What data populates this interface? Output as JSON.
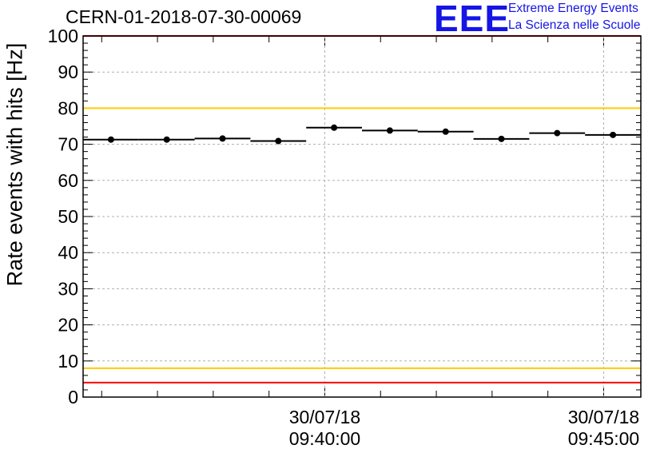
{
  "title": "CERN-01-2018-07-30-00069",
  "logo": {
    "letters": "EEE",
    "line1": "Extreme Energy Events",
    "line2": "La Scienza nelle Scuole",
    "color": "#1515e6"
  },
  "chart_data": {
    "type": "scatter",
    "ylabel": "Rate events with hits [Hz]",
    "xlabel": "",
    "ylim": [
      0,
      100
    ],
    "xlim": [
      "09:35:40",
      "09:45:40"
    ],
    "yticks": [
      0,
      10,
      20,
      30,
      40,
      50,
      60,
      70,
      80,
      90,
      100
    ],
    "xticks": [
      {
        "date": "30/07/18",
        "time": "09:40:00"
      },
      {
        "date": "30/07/18",
        "time": "09:45:00"
      }
    ],
    "grid": true,
    "points": [
      {
        "x": "09:36:10",
        "y": 71.3,
        "xerr_s": 30,
        "yerr": 0.6
      },
      {
        "x": "09:37:10",
        "y": 71.3,
        "xerr_s": 30,
        "yerr": 0.6
      },
      {
        "x": "09:38:10",
        "y": 71.6,
        "xerr_s": 30,
        "yerr": 0.6
      },
      {
        "x": "09:39:10",
        "y": 70.9,
        "xerr_s": 30,
        "yerr": 0.6
      },
      {
        "x": "09:40:10",
        "y": 74.6,
        "xerr_s": 30,
        "yerr": 0.6
      },
      {
        "x": "09:41:10",
        "y": 73.8,
        "xerr_s": 30,
        "yerr": 0.6
      },
      {
        "x": "09:42:10",
        "y": 73.5,
        "xerr_s": 30,
        "yerr": 0.6
      },
      {
        "x": "09:43:10",
        "y": 71.5,
        "xerr_s": 30,
        "yerr": 0.6
      },
      {
        "x": "09:44:10",
        "y": 73.1,
        "xerr_s": 30,
        "yerr": 0.6
      },
      {
        "x": "09:45:10",
        "y": 72.6,
        "xerr_s": 30,
        "yerr": 0.6
      }
    ],
    "reference_lines": [
      {
        "y": 100,
        "color": "#ff0000"
      },
      {
        "y": 80,
        "color": "#ffcc00"
      },
      {
        "y": 8,
        "color": "#ffcc00"
      },
      {
        "y": 4,
        "color": "#ff0000"
      }
    ],
    "marker_color": "#000000"
  }
}
